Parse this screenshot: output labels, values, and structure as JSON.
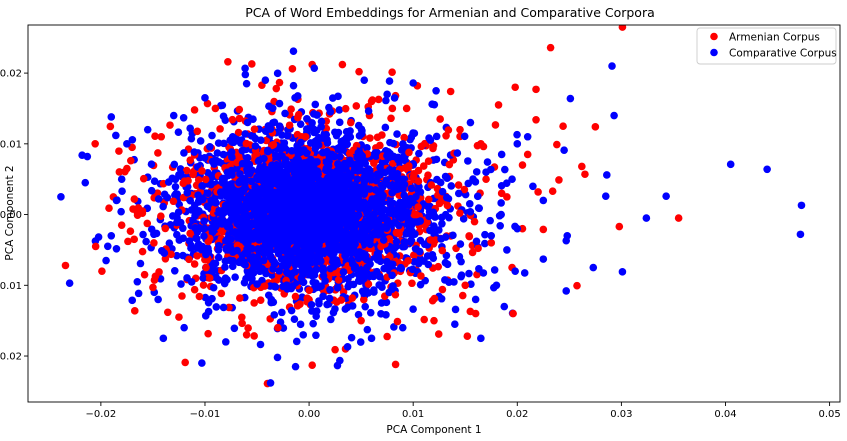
{
  "chart_data": {
    "type": "scatter",
    "title": "PCA of Word Embeddings for Armenian and Comparative Corpora",
    "xlabel": "PCA Component 1",
    "ylabel": "PCA Component 2",
    "xlim": [
      -0.027,
      0.051
    ],
    "ylim": [
      -0.0265,
      0.0268
    ],
    "xticks": [
      -0.02,
      -0.01,
      0.0,
      0.01,
      0.02,
      0.03,
      0.04,
      0.05
    ],
    "xtick_labels": [
      "−0.02",
      "−0.01",
      "0.00",
      "0.01",
      "0.02",
      "0.03",
      "0.04",
      "0.05"
    ],
    "yticks": [
      -0.02,
      -0.01,
      0.0,
      0.01,
      0.02
    ],
    "ytick_labels": [
      "−0.02",
      "−0.01",
      "0.00",
      "0.01",
      "0.02"
    ],
    "grid": false,
    "legend_position": "top-right",
    "series": [
      {
        "name": "Armenian Corpus",
        "color": "#ff0000",
        "points": [
          [
            0.0301,
            0.0265
          ],
          [
            0.0232,
            0.0236
          ],
          [
            0.0298,
            -0.0017
          ],
          [
            0.0355,
            -0.0005
          ],
          [
            0.0275,
            0.0124
          ],
          [
            0.0244,
            0.0125
          ],
          [
            0.0218,
            0.0134
          ],
          [
            0.0262,
            0.0068
          ],
          [
            0.0265,
            0.0057
          ],
          [
            0.0234,
            0.0033
          ],
          [
            0.022,
            0.0032
          ],
          [
            0.024,
            0.0049
          ],
          [
            0.0198,
            0.018
          ],
          [
            0.0218,
            0.0177
          ],
          [
            0.0238,
            0.0099
          ],
          [
            0.0225,
            -0.0021
          ],
          [
            0.0182,
            0.0155
          ],
          [
            0.0196,
            -0.014
          ],
          [
            -0.0234,
            -0.0072
          ],
          [
            -0.0199,
            -0.008
          ],
          [
            -0.0119,
            -0.0209
          ],
          [
            -0.0099,
            -0.0075
          ],
          [
            -0.004,
            -0.0239
          ],
          [
            0.0003,
            -0.0213
          ],
          [
            0.0025,
            -0.0191
          ],
          [
            0.0035,
            -0.019
          ],
          [
            -0.0078,
            0.0216
          ],
          [
            -0.0055,
            0.0213
          ],
          [
            -0.0016,
            0.0206
          ],
          [
            0.0003,
            0.0212
          ],
          [
            0.0032,
            0.0212
          ],
          [
            0.0048,
            0.0202
          ],
          [
            0.0104,
            0.0182
          ],
          [
            0.0136,
            0.0174
          ],
          [
            -0.0205,
            -0.0045
          ],
          [
            -0.0188,
            0.0025
          ],
          [
            -0.017,
            0.0095
          ],
          [
            -0.0158,
            -0.0085
          ],
          [
            -0.015,
            -0.0103
          ],
          [
            -0.0142,
            0.011
          ],
          [
            -0.0125,
            -0.0145
          ],
          [
            -0.011,
            0.0148
          ],
          [
            0.0152,
            -0.0172
          ],
          [
            0.016,
            -0.014
          ],
          [
            0.017,
            0.005
          ],
          [
            0.0175,
            -0.004
          ],
          [
            0.0165,
            0.01
          ],
          [
            0.0185,
            0.003
          ],
          [
            0.019,
            0.0025
          ],
          [
            0.0195,
            -0.0075
          ],
          [
            0.0205,
            0.007
          ],
          [
            0.0205,
            -0.002
          ],
          [
            0.021,
            0.0085
          ],
          [
            -0.018,
            -0.0015
          ],
          [
            -0.0175,
            0.0065
          ],
          [
            -0.0168,
            -0.0035
          ],
          [
            -0.016,
            0.0005
          ],
          [
            0.0145,
            0.012
          ],
          [
            0.015,
            -0.01
          ],
          [
            0.012,
            -0.015
          ],
          [
            -0.006,
            -0.017
          ],
          [
            -0.003,
            -0.016
          ],
          [
            0.005,
            -0.015
          ],
          [
            -0.009,
            0.015
          ],
          [
            0.006,
            0.016
          ],
          [
            0.008,
            0.015
          ]
        ]
      },
      {
        "name": "Comparative Corpus",
        "color": "#0000ff",
        "points": [
          [
            0.0291,
            0.021
          ],
          [
            0.0473,
            0.0013
          ],
          [
            0.0472,
            -0.0028
          ],
          [
            0.044,
            0.0064
          ],
          [
            0.0405,
            0.0071
          ],
          [
            0.0343,
            0.0026
          ],
          [
            0.0324,
            -0.0005
          ],
          [
            0.0301,
            -0.0081
          ],
          [
            0.0273,
            -0.0075
          ],
          [
            0.0286,
            0.0056
          ],
          [
            0.0285,
            0.0026
          ],
          [
            0.0293,
            0.014
          ],
          [
            0.0251,
            0.0164
          ],
          [
            0.0245,
            0.0091
          ],
          [
            0.0248,
            -0.003
          ],
          [
            0.0247,
            -0.0037
          ],
          [
            0.0225,
            -0.0063
          ],
          [
            0.0247,
            -0.0108
          ],
          [
            0.0198,
            -0.008
          ],
          [
            0.0165,
            -0.0175
          ],
          [
            -0.023,
            -0.0097
          ],
          [
            -0.0218,
            0.0084
          ],
          [
            -0.0213,
            0.0082
          ],
          [
            -0.019,
            0.0138
          ],
          [
            -0.0215,
            0.0045
          ],
          [
            -0.014,
            -0.0175
          ],
          [
            -0.0103,
            -0.021
          ],
          [
            -0.0037,
            -0.0238
          ],
          [
            -0.0013,
            -0.0215
          ],
          [
            0.0037,
            -0.0187
          ],
          [
            -0.0015,
            0.0231
          ],
          [
            -0.0042,
            0.019
          ],
          [
            0.0005,
            0.0207
          ],
          [
            0.0053,
            0.019
          ],
          [
            0.01,
            0.0186
          ],
          [
            -0.006,
            0.0185
          ],
          [
            0.0122,
            0.0175
          ],
          [
            0.021,
            0.011
          ],
          [
            0.0215,
            0.004
          ],
          [
            0.02,
            0.01
          ],
          [
            0.019,
            -0.005
          ],
          [
            0.02,
            -0.002
          ],
          [
            0.0185,
            0.0085
          ],
          [
            0.018,
            -0.01
          ],
          [
            -0.0195,
            -0.0065
          ],
          [
            -0.0185,
            0.002
          ],
          [
            -0.0175,
            0.01
          ],
          [
            -0.0165,
            -0.0095
          ],
          [
            -0.0155,
            0.012
          ],
          [
            -0.0145,
            -0.012
          ],
          [
            -0.013,
            0.014
          ],
          [
            -0.012,
            -0.016
          ],
          [
            0.014,
            -0.0155
          ],
          [
            0.0155,
            0.013
          ],
          [
            0.016,
            -0.012
          ],
          [
            0.017,
            0.006
          ],
          [
            -0.008,
            -0.018
          ],
          [
            0.006,
            -0.0175
          ],
          [
            0.009,
            -0.016
          ],
          [
            -0.01,
            0.0165
          ],
          [
            0.0075,
            0.017
          ],
          [
            -0.019,
            -0.003
          ],
          [
            -0.018,
            0.005
          ],
          [
            0.0175,
            -0.003
          ],
          [
            0.0195,
            0.005
          ],
          [
            0.0225,
            0.002
          ]
        ]
      }
    ]
  }
}
